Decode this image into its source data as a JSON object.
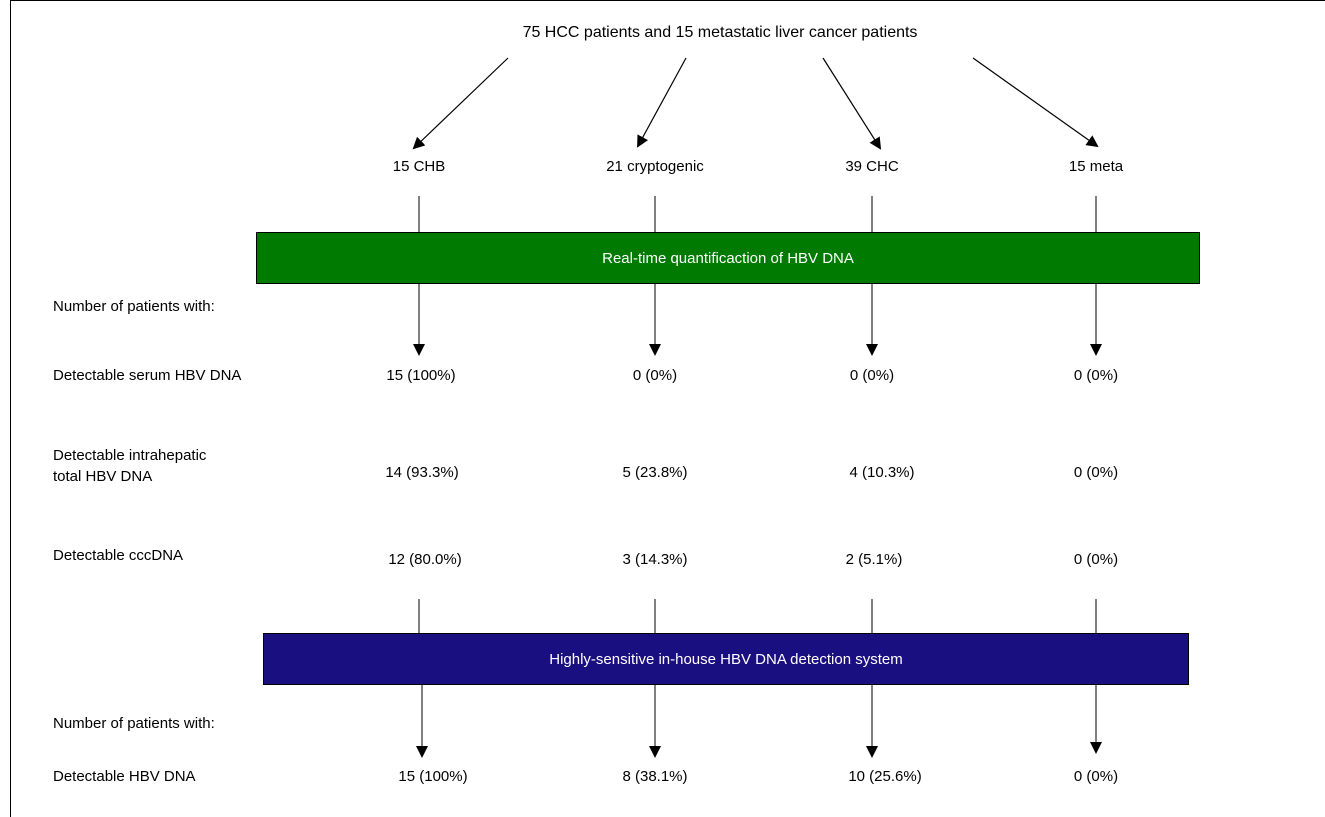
{
  "top_label": "75 HCC patients and 15 metastatic liver cancer patients",
  "groups": [
    "15 CHB",
    "21 cryptogenic",
    "39 CHC",
    "15 meta"
  ],
  "bars": {
    "realtime": "Real-time quantificaction of HBV DNA",
    "inhouse": "Highly-sensitive in-house HBV DNA detection system"
  },
  "section_labels": {
    "number_with_1": "Number of patients with:",
    "number_with_2": "Number of patients with:"
  },
  "rows": {
    "serum": {
      "label": "Detectable serum HBV DNA",
      "values": [
        "15 (100%)",
        "0 (0%)",
        "0 (0%)",
        "0 (0%)"
      ]
    },
    "intrahepatic": {
      "label_line1": "Detectable intrahepatic",
      "label_line2": "total HBV DNA",
      "values": [
        "14 (93.3%)",
        "5 (23.8%)",
        "4 (10.3%)",
        "0 (0%)"
      ]
    },
    "cccdna": {
      "label": "Detectable cccDNA",
      "values": [
        "12 (80.0%)",
        "3 (14.3%)",
        "2 (5.1%)",
        "0 (0%)"
      ]
    },
    "hbvdna": {
      "label": "Detectable HBV DNA",
      "values": [
        "15 (100%)",
        "8 (38.1%)",
        "10 (25.6%)",
        "0 (0%)"
      ]
    }
  },
  "colors": {
    "realtime_bar": "#007a00",
    "inhouse_bar": "#1a0f80"
  }
}
